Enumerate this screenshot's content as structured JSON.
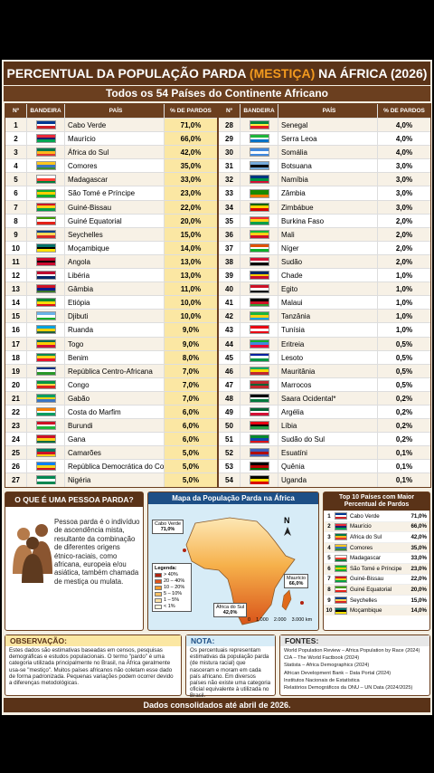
{
  "header": {
    "title_a": "PERCENTUAL DA POPULAÇÃO PARDA ",
    "title_b": "(MESTIÇA)",
    "title_c": " NA ÁFRICA (2026)",
    "subtitle": "Todos os 54 Países do Continente Africano"
  },
  "table": {
    "columns": [
      "Nº",
      "BANDEIRA",
      "PAÍS",
      "% DE PARDOS"
    ],
    "rows": [
      [
        "1",
        "Cabo Verde",
        "71,0%"
      ],
      [
        "2",
        "Maurício",
        "66,0%"
      ],
      [
        "3",
        "África do Sul",
        "42,0%"
      ],
      [
        "4",
        "Comores",
        "35,0%"
      ],
      [
        "5",
        "Madagascar",
        "33,0%"
      ],
      [
        "6",
        "São Tomé e Príncipe",
        "23,0%"
      ],
      [
        "7",
        "Guiné-Bissau",
        "22,0%"
      ],
      [
        "8",
        "Guiné Equatorial",
        "20,0%"
      ],
      [
        "9",
        "Seychelles",
        "15,0%"
      ],
      [
        "10",
        "Moçambique",
        "14,0%"
      ],
      [
        "11",
        "Angola",
        "13,0%"
      ],
      [
        "12",
        "Libéria",
        "13,0%"
      ],
      [
        "13",
        "Gâmbia",
        "11,0%"
      ],
      [
        "14",
        "Etiópia",
        "10,0%"
      ],
      [
        "15",
        "Djibuti",
        "10,0%"
      ],
      [
        "16",
        "Ruanda",
        "9,0%"
      ],
      [
        "17",
        "Togo",
        "9,0%"
      ],
      [
        "18",
        "Benim",
        "8,0%"
      ],
      [
        "19",
        "República Centro-Africana",
        "7,0%"
      ],
      [
        "20",
        "Congo",
        "7,0%"
      ],
      [
        "21",
        "Gabão",
        "7,0%"
      ],
      [
        "22",
        "Costa do Marfim",
        "6,0%"
      ],
      [
        "23",
        "Burundi",
        "6,0%"
      ],
      [
        "24",
        "Gana",
        "6,0%"
      ],
      [
        "25",
        "Camarões",
        "5,0%"
      ],
      [
        "26",
        "República Democrática do Congo",
        "5,0%"
      ],
      [
        "27",
        "Nigéria",
        "5,0%"
      ],
      [
        "28",
        "Senegal",
        "4,0%"
      ],
      [
        "29",
        "Serra Leoa",
        "4,0%"
      ],
      [
        "30",
        "Somália",
        "4,0%"
      ],
      [
        "31",
        "Botsuana",
        "3,0%"
      ],
      [
        "32",
        "Namíbia",
        "3,0%"
      ],
      [
        "33",
        "Zâmbia",
        "3,0%"
      ],
      [
        "34",
        "Zimbábue",
        "3,0%"
      ],
      [
        "35",
        "Burkina Faso",
        "2,0%"
      ],
      [
        "36",
        "Mali",
        "2,0%"
      ],
      [
        "37",
        "Níger",
        "2,0%"
      ],
      [
        "38",
        "Sudão",
        "2,0%"
      ],
      [
        "39",
        "Chade",
        "1,0%"
      ],
      [
        "40",
        "Egito",
        "1,0%"
      ],
      [
        "41",
        "Malaui",
        "1,0%"
      ],
      [
        "42",
        "Tanzânia",
        "1,0%"
      ],
      [
        "43",
        "Tunísia",
        "1,0%"
      ],
      [
        "44",
        "Eritreia",
        "0,5%"
      ],
      [
        "45",
        "Lesoto",
        "0,5%"
      ],
      [
        "46",
        "Mauritânia",
        "0,5%"
      ],
      [
        "47",
        "Marrocos",
        "0,5%"
      ],
      [
        "48",
        "Saara Ocidental*",
        "0,2%"
      ],
      [
        "49",
        "Argélia",
        "0,2%"
      ],
      [
        "50",
        "Líbia",
        "0,2%"
      ],
      [
        "51",
        "Sudão do Sul",
        "0,2%"
      ],
      [
        "52",
        "Esuatíni",
        "0,1%"
      ],
      [
        "53",
        "Quênia",
        "0,1%"
      ],
      [
        "54",
        "Uganda",
        "0,1%"
      ]
    ]
  },
  "definition": {
    "title": "O QUE É UMA PESSOA PARDA?",
    "text": "Pessoa parda é o indivíduo de ascendência mista, resultante da combinação de diferentes origens étnico-raciais, como africana, europeia e/ou asiática, também chamada de mestiça ou mulata."
  },
  "map": {
    "title": "Mapa da População Parda na África",
    "legend_title": "Legenda:",
    "legend": [
      "> 40%",
      "20 – 40%",
      "10 – 20%",
      "5 – 10%",
      "1 – 5%",
      "< 1%"
    ],
    "callouts": [
      [
        "Cabo Verde",
        "71,0%"
      ],
      [
        "Maurício",
        "66,0%"
      ],
      [
        "África do Sul",
        "42,0%"
      ]
    ],
    "north": "N",
    "scale": [
      "0",
      "1.000",
      "2.000",
      "3.000 km"
    ]
  },
  "top10": {
    "title": "Top 10 Países com Maior Percentual de Pardos"
  },
  "observation": {
    "title": "OBSERVAÇÃO:",
    "text": "Estes dados são estimativas baseadas em censos, pesquisas demográficas e estudos populacionais. O termo \"pardo\" é uma categoria utilizada principalmente no Brasil, na África geralmente usa-se \"mestiço\". Muitos países africanos não coletam esse dado de forma padronizada. Pequenas variações podem ocorrer devido a diferenças metodológicas."
  },
  "note": {
    "title": "NOTA:",
    "text": "Os percentuais representam estimativas da população parda (de mistura racial) que nasceram e moram em cada país africano. Em diversos países não existe uma categoria oficial equivalente à utilizada no Brasil."
  },
  "sources": {
    "title": "FONTES:",
    "items": [
      "World Population Review – Africa Population by Race (2024)",
      "CIA – The World Factbook (2024)",
      "Statista – Africa Demographics (2024)",
      "African Development Bank – Data Portal (2024)",
      "Institutos Nacionais de Estatística",
      "Relatórios Demográficos da ONU – UN Data (2024/2025)"
    ]
  },
  "footer": "Dados consolidados até abril de 2026."
}
